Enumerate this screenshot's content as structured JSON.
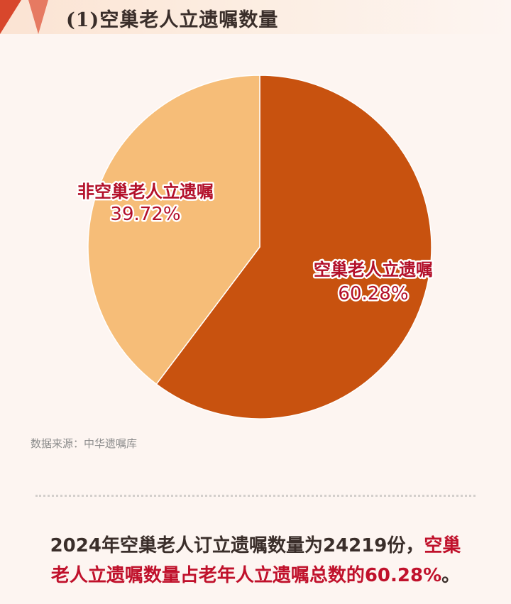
{
  "header": {
    "title": "(1)空巢老人立遗嘱数量"
  },
  "chart_data": {
    "type": "pie",
    "title": "",
    "slices": [
      {
        "label": "空巢老人立遗嘱",
        "value": 60.28,
        "value_label": "60.28%",
        "color": "#c8520f"
      },
      {
        "label": "非空巢老人立遗嘱",
        "value": 39.72,
        "value_label": "39.72%",
        "color": "#f6bd78"
      }
    ],
    "start_angle_deg": 0,
    "direction": "clockwise",
    "legend": "none",
    "label_color": "#b3102a"
  },
  "source": {
    "text": "数据来源：中华遗嘱库"
  },
  "summary": {
    "part1": "2024年空巢老人订立遗嘱数量为24219份，",
    "part2_highlight": "空巢",
    "line2_highlight": "老人立遗嘱数量占老年人立遗嘱总数的60.28%",
    "line2_end": "。"
  },
  "colors": {
    "background": "#fdf5f1",
    "accent_red": "#d8472c",
    "highlight_text": "#c0112b",
    "body_text": "#3a2e2a"
  }
}
